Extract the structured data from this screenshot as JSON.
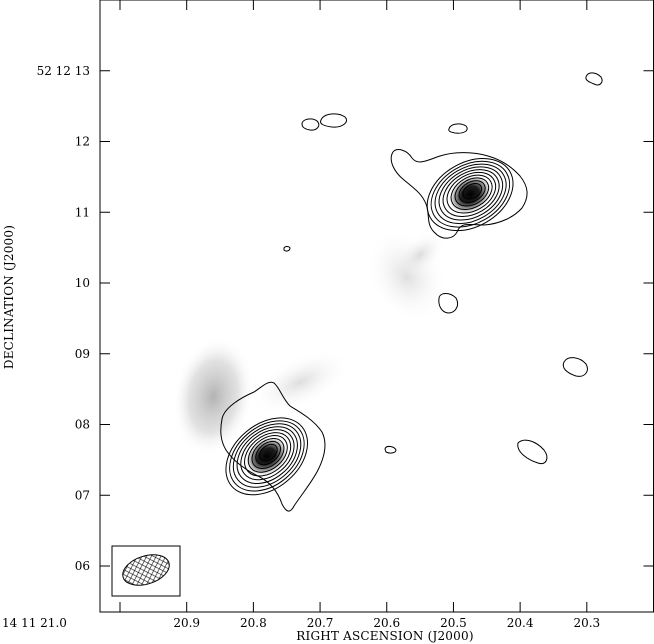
{
  "chart_data": {
    "type": "contour",
    "xlabel": "RIGHT ASCENSION (J2000)",
    "ylabel": "DECLINATION (J2000)",
    "x_axis": {
      "units": "seconds of RA (14 11 xx.x)",
      "range": [
        20.2,
        21.03
      ],
      "ticks": [
        {
          "value": 21.0,
          "label": "14 11 21.0"
        },
        {
          "value": 20.9,
          "label": "20.9"
        },
        {
          "value": 20.8,
          "label": "20.8"
        },
        {
          "value": 20.7,
          "label": "20.7"
        },
        {
          "value": 20.6,
          "label": "20.6"
        },
        {
          "value": 20.5,
          "label": "20.5"
        },
        {
          "value": 20.4,
          "label": "20.4"
        },
        {
          "value": 20.3,
          "label": "20.3"
        }
      ]
    },
    "y_axis": {
      "units": "arcsec of Dec (52 12 xx)",
      "range": [
        5.35,
        14.0
      ],
      "ticks": [
        {
          "value": 13,
          "label": "52 12 13"
        },
        {
          "value": 12,
          "label": "12"
        },
        {
          "value": 11,
          "label": "11"
        },
        {
          "value": 10,
          "label": "10"
        },
        {
          "value": 9,
          "label": "09"
        },
        {
          "value": 8,
          "label": "08"
        },
        {
          "value": 7,
          "label": "07"
        },
        {
          "value": 6,
          "label": "06"
        }
      ]
    },
    "sources": [
      {
        "name": "north-east component",
        "ra": 20.475,
        "dec": 11.25,
        "contour_levels": 10
      },
      {
        "name": "south-west component",
        "ra": 20.78,
        "dec": 7.55,
        "contour_levels": 10
      }
    ],
    "greyscale_features": [
      {
        "ra": 20.86,
        "dec": 8.4,
        "note": "diffuse emission west of south-west component"
      },
      {
        "ra": 20.57,
        "dec": 10.1,
        "note": "faint emission between components"
      }
    ],
    "beam": {
      "shown": true,
      "position": "bottom-left"
    },
    "grid": false,
    "colors": {
      "contour": "#000000",
      "greyscale_peak": "#000000",
      "background": "#ffffff"
    }
  }
}
